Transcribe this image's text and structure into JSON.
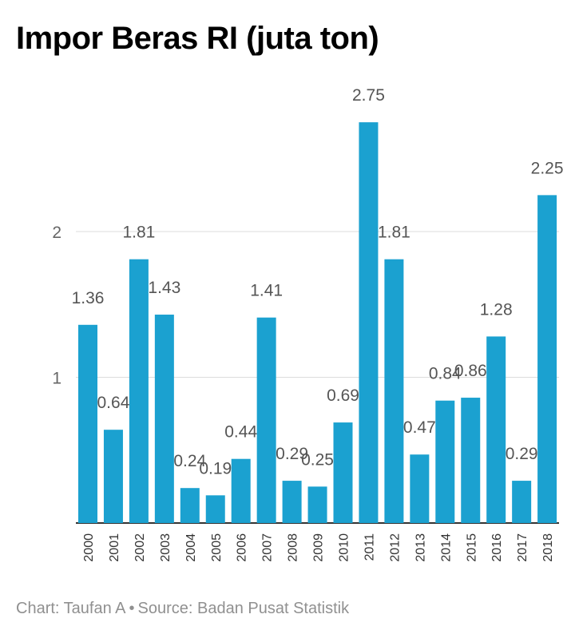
{
  "title": "Impor Beras RI (juta ton)",
  "footer": {
    "credit": "Chart: Taufan A",
    "separator": "•",
    "source": "Source: Badan Pusat Statistik"
  },
  "chart_data": {
    "type": "bar",
    "title": "Impor Beras RI (juta ton)",
    "categories": [
      "2000",
      "2001",
      "2002",
      "2003",
      "2004",
      "2005",
      "2006",
      "2007",
      "2008",
      "2009",
      "2010",
      "2011",
      "2012",
      "2013",
      "2014",
      "2015",
      "2016",
      "2017",
      "2018"
    ],
    "values": [
      1.36,
      0.64,
      1.81,
      1.43,
      0.24,
      0.19,
      0.44,
      1.41,
      0.29,
      0.25,
      0.69,
      2.75,
      1.81,
      0.47,
      0.84,
      0.86,
      1.28,
      0.29,
      2.25
    ],
    "labels": [
      "1.36",
      "0.64",
      "1.81",
      "1.43",
      "0.24",
      "0.19",
      "0.44",
      "1.41",
      "0.29",
      "0.25",
      "0.69",
      "2.75",
      "1.81",
      "0.47",
      "0.84",
      "0.86",
      "1.28",
      "0.29",
      "2.25"
    ],
    "yticks": [
      1,
      2
    ],
    "ytick_labels": [
      "1",
      "2"
    ],
    "ylim": [
      0,
      2.75
    ],
    "grid": true,
    "bar_color": "#1ba1d0",
    "xlabel": "",
    "ylabel": ""
  }
}
